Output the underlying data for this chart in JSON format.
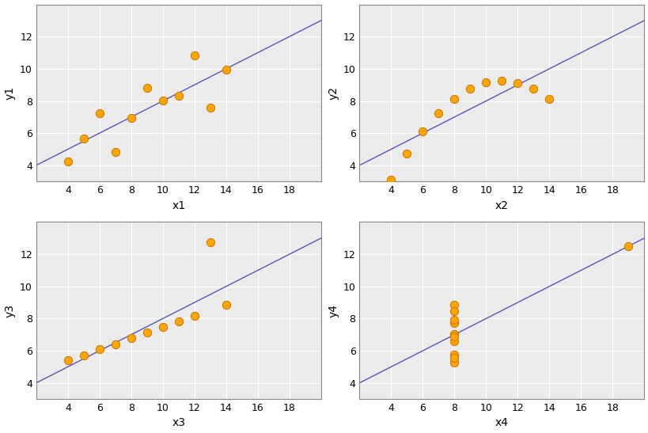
{
  "datasets": {
    "I": {
      "x": [
        10,
        8,
        13,
        9,
        11,
        14,
        6,
        4,
        12,
        7,
        5
      ],
      "y": [
        8.04,
        6.95,
        7.58,
        8.81,
        8.33,
        9.96,
        7.24,
        4.26,
        10.84,
        4.82,
        5.68
      ]
    },
    "II": {
      "x": [
        10,
        8,
        13,
        9,
        11,
        14,
        6,
        4,
        12,
        7,
        5
      ],
      "y": [
        9.14,
        8.14,
        8.74,
        8.77,
        9.26,
        8.1,
        6.13,
        3.1,
        9.13,
        7.26,
        4.74
      ]
    },
    "III": {
      "x": [
        10,
        8,
        13,
        9,
        11,
        14,
        6,
        4,
        12,
        7,
        5
      ],
      "y": [
        7.46,
        6.77,
        12.74,
        7.11,
        7.81,
        8.84,
        6.08,
        5.39,
        8.15,
        6.42,
        5.73
      ]
    },
    "IV": {
      "x": [
        8,
        8,
        8,
        8,
        8,
        8,
        8,
        19,
        8,
        8,
        8
      ],
      "y": [
        6.58,
        5.76,
        7.71,
        8.84,
        8.47,
        7.04,
        5.25,
        12.5,
        5.56,
        7.91,
        6.89
      ]
    }
  },
  "xlabels": [
    "x1",
    "x2",
    "x3",
    "x4"
  ],
  "ylabels": [
    "y1",
    "y2",
    "y3",
    "y4"
  ],
  "xlim": [
    2,
    20
  ],
  "ylim": [
    3,
    14
  ],
  "xticks": [
    4,
    6,
    8,
    10,
    12,
    14,
    16,
    18
  ],
  "yticks": [
    4,
    6,
    8,
    10,
    12
  ],
  "dot_color": "#FFA500",
  "dot_edgecolor": "#CC7000",
  "line_color": "#5555BB",
  "dot_size": 55,
  "background_color": "#ffffff",
  "panel_bg": "#EBEBEB",
  "grid_color": "#ffffff",
  "spine_color": "#888888",
  "tick_color": "#333333",
  "label_fontsize": 10,
  "tick_fontsize": 9
}
